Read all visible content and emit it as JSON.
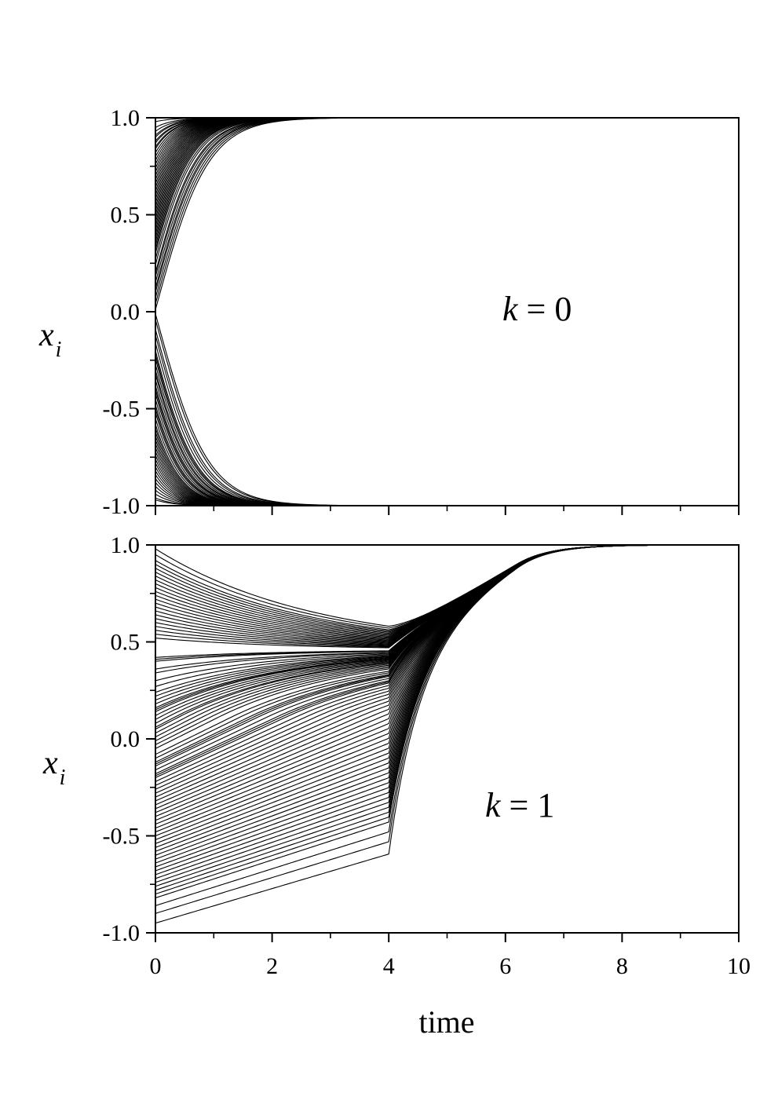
{
  "chart_data": [
    {
      "type": "line",
      "panel": "top",
      "annotation": {
        "var": "k",
        "rest": " = 0"
      },
      "ylabel": {
        "main": "x",
        "sub": "i"
      },
      "xlabel": "",
      "xlim": [
        0,
        10
      ],
      "ylim": [
        -1.0,
        1.0
      ],
      "x_ticks": [
        0,
        2,
        4,
        6,
        8,
        10
      ],
      "y_ticks": [
        -1.0,
        -0.5,
        0.0,
        0.5,
        1.0
      ],
      "y_tick_labels": [
        "-1.0",
        "-0.5",
        "0.0",
        "0.5",
        "1.0"
      ],
      "grid": false,
      "legend": "none",
      "model": "tanh-sigmoid trajectories converging to +1 or -1",
      "initial_values": [
        0.98,
        0.95,
        0.93,
        0.91,
        0.9,
        0.88,
        0.87,
        0.85,
        0.84,
        0.82,
        0.8,
        0.78,
        0.76,
        0.74,
        0.72,
        0.7,
        0.68,
        0.66,
        0.64,
        0.62,
        0.6,
        0.58,
        0.56,
        0.54,
        0.52,
        0.5,
        0.48,
        0.46,
        0.44,
        0.42,
        0.4,
        0.38,
        0.36,
        0.34,
        0.32,
        0.3,
        0.27,
        0.24,
        0.2,
        0.18,
        0.15,
        0.12,
        0.1,
        0.07,
        0.04,
        0.01,
        -0.01,
        -0.04,
        -0.09,
        -0.12,
        -0.16,
        -0.2,
        -0.22,
        -0.24,
        -0.27,
        -0.3,
        -0.32,
        -0.35,
        -0.38,
        -0.4,
        -0.42,
        -0.45,
        -0.48,
        -0.5,
        -0.52,
        -0.55,
        -0.58,
        -0.6,
        -0.62,
        -0.64,
        -0.66,
        -0.68,
        -0.7,
        -0.72,
        -0.74,
        -0.76,
        -0.78,
        -0.8,
        -0.82,
        -0.84,
        -0.86,
        -0.88,
        -0.9,
        -0.92,
        -0.94,
        -0.96,
        -0.97
      ]
    },
    {
      "type": "line",
      "panel": "bottom",
      "annotation": {
        "var": "k",
        "rest": " = 1"
      },
      "ylabel": {
        "main": "x",
        "sub": "i"
      },
      "xlabel": "time",
      "xlim": [
        0,
        10
      ],
      "ylim": [
        -1.0,
        1.0
      ],
      "x_ticks": [
        0,
        2,
        4,
        6,
        8,
        10
      ],
      "x_tick_labels": [
        "0",
        "2",
        "4",
        "6",
        "8",
        "10"
      ],
      "y_ticks": [
        -1.0,
        -0.5,
        0.0,
        0.5,
        1.0
      ],
      "y_tick_labels": [
        "-1.0",
        "-0.5",
        "0.0",
        "0.5",
        "1.0"
      ],
      "grid": false,
      "legend": "none",
      "model": "trajectories drifting to a common drive, all converging to +1 near time 6-8",
      "initial_values": [
        0.98,
        0.95,
        0.92,
        0.9,
        0.88,
        0.86,
        0.84,
        0.82,
        0.8,
        0.78,
        0.76,
        0.74,
        0.72,
        0.7,
        0.68,
        0.66,
        0.64,
        0.62,
        0.6,
        0.58,
        0.56,
        0.54,
        0.52,
        0.42,
        0.41,
        0.4,
        0.36,
        0.34,
        0.3,
        0.27,
        0.24,
        0.22,
        0.2,
        0.18,
        0.16,
        0.15,
        0.14,
        0.12,
        0.1,
        0.08,
        0.06,
        0.05,
        0.03,
        0.01,
        -0.01,
        -0.03,
        -0.05,
        -0.08,
        -0.1,
        -0.12,
        -0.13,
        -0.14,
        -0.16,
        -0.18,
        -0.19,
        -0.2,
        -0.22,
        -0.24,
        -0.26,
        -0.28,
        -0.3,
        -0.32,
        -0.34,
        -0.36,
        -0.38,
        -0.4,
        -0.42,
        -0.44,
        -0.46,
        -0.48,
        -0.5,
        -0.52,
        -0.54,
        -0.56,
        -0.58,
        -0.6,
        -0.62,
        -0.64,
        -0.66,
        -0.68,
        -0.7,
        -0.72,
        -0.74,
        -0.76,
        -0.78,
        -0.8,
        -0.82,
        -0.86,
        -0.9,
        -0.95
      ]
    }
  ]
}
